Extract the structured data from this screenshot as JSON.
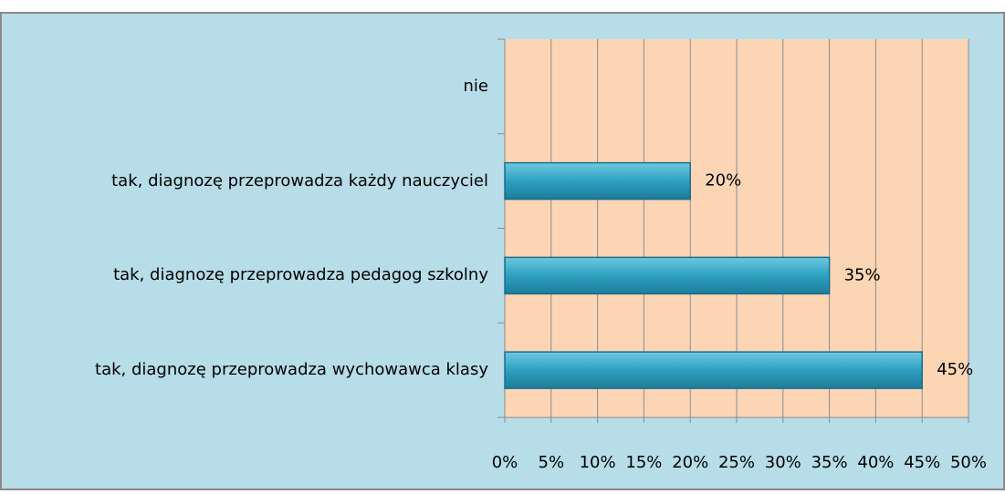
{
  "chart_data": {
    "type": "barh",
    "categories": [
      "nie",
      "tak, diagnozę przeprowadza każdy nauczyciel",
      "tak, diagnozę przeprowadza pedagog szkolny",
      "tak, diagnozę przeprowadza wychowawca klasy"
    ],
    "values": [
      0,
      20,
      35,
      45
    ],
    "value_labels": [
      null,
      "20%",
      "35%",
      "45%"
    ],
    "color": "#2e9fc0",
    "xlim": [
      0,
      50
    ],
    "xticks": [
      {
        "value": 0,
        "label": "0%"
      },
      {
        "value": 5,
        "label": "5%"
      },
      {
        "value": 10,
        "label": "10%"
      },
      {
        "value": 15,
        "label": "15%"
      },
      {
        "value": 20,
        "label": "20%"
      },
      {
        "value": 25,
        "label": "25%"
      },
      {
        "value": 30,
        "label": "30%"
      },
      {
        "value": 35,
        "label": "35%"
      },
      {
        "value": 40,
        "label": "40%"
      },
      {
        "value": 45,
        "label": "45%"
      },
      {
        "value": 50,
        "label": "50%"
      }
    ],
    "grid": true
  }
}
